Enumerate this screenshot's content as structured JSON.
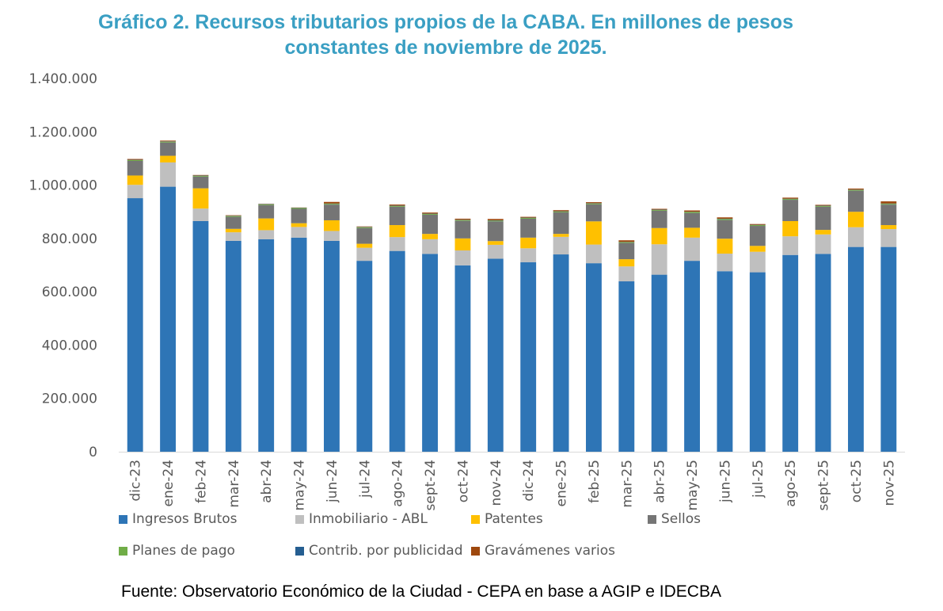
{
  "chart_data": {
    "type": "bar",
    "stacked": true,
    "title": "Gráfico 2. Recursos tributarios propios de la CABA. En millones de pesos constantes de noviembre de 2025.",
    "title_lines": [
      "Gráfico 2. Recursos tributarios propios de la CABA. En millones de pesos",
      "constantes de noviembre de 2025."
    ],
    "xlabel": "",
    "ylabel": "",
    "ylim": [
      0,
      1400000
    ],
    "yticks": [
      0,
      200000,
      400000,
      600000,
      800000,
      1000000,
      1200000,
      1400000
    ],
    "ytick_labels": [
      "0",
      "200.000",
      "400.000",
      "600.000",
      "800.000",
      "1.000.000",
      "1.200.000",
      "1.400.000"
    ],
    "grid": false,
    "legend_position": "bottom",
    "categories": [
      "dic-23",
      "ene-24",
      "feb-24",
      "mar-24",
      "abr-24",
      "may-24",
      "jun-24",
      "jul-24",
      "ago-24",
      "sept-24",
      "oct-24",
      "nov-24",
      "dic-24",
      "ene-25",
      "feb-25",
      "mar-25",
      "abr-25",
      "may-25",
      "jun-25",
      "jul-25",
      "ago-25",
      "sept-25",
      "oct-25",
      "nov-25"
    ],
    "series": [
      {
        "name": "Ingresos Brutos",
        "color": "#2E75B6",
        "values": [
          951000,
          994000,
          865000,
          791000,
          797000,
          803000,
          791000,
          716000,
          753000,
          742000,
          699000,
          724000,
          711000,
          740000,
          707000,
          639000,
          664000,
          716000,
          677000,
          673000,
          738000,
          742000,
          768000,
          768000
        ]
      },
      {
        "name": "Inmobiliario - ABL",
        "color": "#BFBFBF",
        "values": [
          50000,
          91000,
          47000,
          32000,
          34000,
          40000,
          37000,
          49000,
          52000,
          55000,
          56000,
          52000,
          52000,
          66000,
          70000,
          56000,
          114000,
          87000,
          66000,
          77000,
          70000,
          73000,
          74000,
          67000
        ]
      },
      {
        "name": "Patentes",
        "color": "#FFC000",
        "values": [
          35000,
          25000,
          76000,
          13000,
          44000,
          14000,
          40000,
          15000,
          45000,
          20000,
          45000,
          14000,
          40000,
          11000,
          87000,
          27000,
          61000,
          37000,
          56000,
          22000,
          57000,
          17000,
          58000,
          15000
        ]
      },
      {
        "name": "Sellos",
        "color": "#757575",
        "values": [
          55000,
          50000,
          44000,
          45000,
          50000,
          54000,
          59000,
          59000,
          69000,
          72000,
          66000,
          74000,
          71000,
          81000,
          64000,
          61000,
          65000,
          55000,
          70000,
          75000,
          80000,
          87000,
          79000,
          77000
        ]
      },
      {
        "name": "Planes de pago",
        "color": "#70AD47",
        "values": [
          3000,
          3000,
          3000,
          3000,
          3000,
          3000,
          3000,
          3000,
          3000,
          3000,
          3000,
          3000,
          3000,
          3000,
          3000,
          3000,
          3000,
          4000,
          4000,
          3000,
          3000,
          3000,
          3000,
          3000
        ]
      },
      {
        "name": "Contrib. por publicidad",
        "color": "#255E91",
        "values": [
          1000,
          1000,
          1000,
          1000,
          1000,
          1000,
          1000,
          1000,
          1000,
          1000,
          1000,
          1000,
          1000,
          1000,
          1000,
          1000,
          1000,
          1000,
          1000,
          1000,
          1000,
          1000,
          1000,
          1000
        ]
      },
      {
        "name": "Gravámenes varios",
        "color": "#9E480E",
        "values": [
          3000,
          3000,
          2000,
          2000,
          1000,
          1000,
          6000,
          2000,
          4000,
          4000,
          4000,
          5000,
          3000,
          4000,
          4000,
          6000,
          3000,
          5000,
          5000,
          3000,
          4000,
          3000,
          4000,
          8000
        ]
      }
    ]
  },
  "legend_items": [
    {
      "label": "Ingresos Brutos",
      "color": "#2E75B6"
    },
    {
      "label": "Inmobiliario - ABL",
      "color": "#BFBFBF"
    },
    {
      "label": "Patentes",
      "color": "#FFC000"
    },
    {
      "label": "Sellos",
      "color": "#757575"
    },
    {
      "label": "Planes de pago",
      "color": "#70AD47"
    },
    {
      "label": "Contrib. por publicidad",
      "color": "#255E91"
    },
    {
      "label": "Gravámenes varios",
      "color": "#9E480E"
    }
  ],
  "source": "Fuente: Observatorio Económico de la Ciudad - CEPA en base a AGIP e IDECBA"
}
